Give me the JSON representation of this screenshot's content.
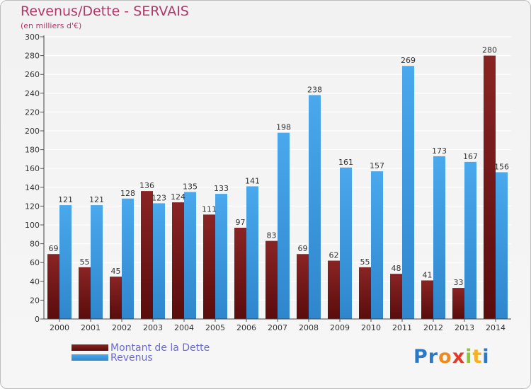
{
  "chart_data": {
    "type": "bar",
    "title": "Revenus/Dette - SERVAIS",
    "subtitle": "(en milliers d'€)",
    "categories": [
      "2000",
      "2001",
      "2002",
      "2003",
      "2004",
      "2005",
      "2006",
      "2007",
      "2008",
      "2009",
      "2010",
      "2011",
      "2012",
      "2013",
      "2014"
    ],
    "series": [
      {
        "name": "Montant de la Dette",
        "color": "#7a1a1a",
        "values": [
          69,
          55,
          45,
          136,
          124,
          111,
          97,
          83,
          69,
          62,
          55,
          48,
          41,
          33,
          280
        ]
      },
      {
        "name": "Revenus",
        "color": "#3d9be0",
        "values": [
          121,
          121,
          128,
          123,
          135,
          133,
          141,
          198,
          238,
          161,
          157,
          269,
          173,
          167,
          156
        ]
      }
    ],
    "ylim": [
      0,
      300
    ],
    "yticks": [
      0,
      20,
      40,
      60,
      80,
      100,
      120,
      140,
      160,
      180,
      200,
      220,
      240,
      260,
      280,
      300
    ],
    "grid": true,
    "legend": "bottom-left"
  },
  "logo": {
    "letters": [
      {
        "char": "P",
        "color": "#2a78c8"
      },
      {
        "char": "r",
        "color": "#2a78c8"
      },
      {
        "char": "o",
        "color": "#f08a1c"
      },
      {
        "char": "x",
        "color": "#e23a2a"
      },
      {
        "char": "i",
        "color": "#8cc63e"
      },
      {
        "char": "t",
        "color": "#f5b120"
      },
      {
        "char": "i",
        "color": "#2a78c8"
      }
    ]
  }
}
